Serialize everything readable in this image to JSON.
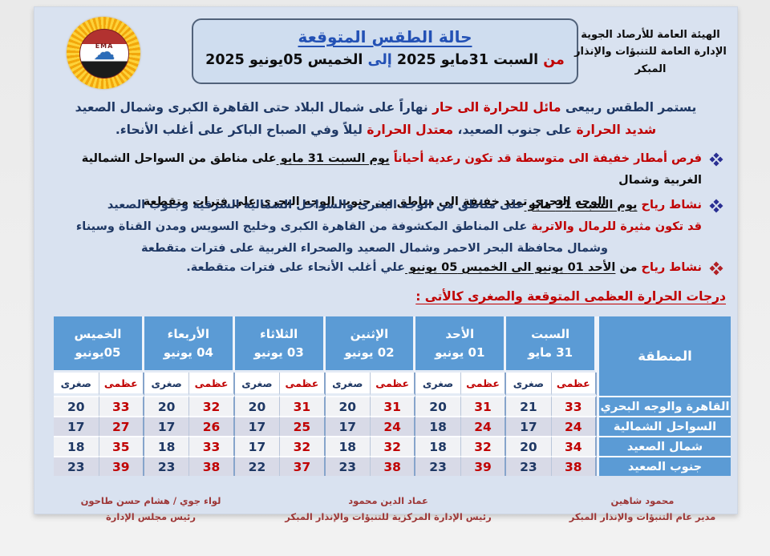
{
  "org": {
    "line1": "الهيئة العامة للأرصاد الجوية",
    "line2": "الإدارة العامة للتنبؤات والإنذار المبكر"
  },
  "logo": {
    "label": "EMA"
  },
  "title": {
    "heading": "حالة الطقس المتوقعة",
    "date_line": [
      {
        "text": "من ",
        "color": "red"
      },
      {
        "text": "السبت 31مايو 2025 ",
        "color": "black"
      },
      {
        "text": "إلى ",
        "color": "blue"
      },
      {
        "text": "الخميس 05يونيو 2025",
        "color": "black"
      }
    ]
  },
  "summary": {
    "lines": [
      {
        "align": "center",
        "segments": [
          {
            "text": "يستمر الطقس ربيعى ",
            "color": "navy"
          },
          {
            "text": "مائل للحرارة الى حار ",
            "color": "red"
          },
          {
            "text": "نهاراً على شمال البلاد حتى القاهرة الكبرى وشمال الصعيد",
            "color": "navy"
          }
        ]
      },
      {
        "align": "center",
        "segments": [
          {
            "text": "شديد الحرارة ",
            "color": "red"
          },
          {
            "text": "على جنوب الصعيد، ",
            "color": "navy"
          },
          {
            "text": "معتدل الحرارة ",
            "color": "red"
          },
          {
            "text": "ليلاً وفي الصباح الباكر على أغلب الأنحاء.",
            "color": "navy"
          }
        ]
      }
    ]
  },
  "bullets": [
    {
      "marker_color": "navy",
      "lines": [
        {
          "align": "right",
          "segments": [
            {
              "text": "فرص أمطار خفيفة الى متوسطة قد تكون رعدية أحياناً ",
              "color": "red"
            },
            {
              "text": "يوم السبت 31 مايو ",
              "color": "black",
              "underline": true
            },
            {
              "text": "على مناطق من السواحل الشمالية الغربية وشمال",
              "color": "black"
            }
          ]
        },
        {
          "align": "center",
          "segments": [
            {
              "text": "الوجه البحرى تمتد خفيفة الى مناطق من جنوب الوجه البحرى على فترات متقطعة",
              "color": "black"
            }
          ]
        }
      ]
    },
    {
      "marker_color": "navy",
      "lines": [
        {
          "align": "right",
          "segments": [
            {
              "text": "نشاط رياح ",
              "color": "red"
            },
            {
              "text": "يوم السبت 31 مايو ",
              "color": "black",
              "underline": true
            },
            {
              "text": "على مناطق من الوجه البحرى والسواحل الشمالية الشرقية وجنوب الصعيد",
              "color": "navy"
            }
          ]
        },
        {
          "align": "right",
          "segments": [
            {
              "text": "قد تكون مثيرة للرمال والاتربة ",
              "color": "red"
            },
            {
              "text": "على المناطق المكشوفة من القاهرة الكبرى وخليج السويس ومدن القناة وسيناء",
              "color": "navy"
            }
          ]
        },
        {
          "align": "center",
          "segments": [
            {
              "text": "وشمال محافظة البحر الاحمر وشمال الصعيد والصحراء الغربية على فترات متقطعة",
              "color": "navy"
            }
          ]
        }
      ]
    },
    {
      "marker_color": "red",
      "lines": [
        {
          "align": "right",
          "segments": [
            {
              "text": "نشاط رياح ",
              "color": "red"
            },
            {
              "text": "من ",
              "color": "black"
            },
            {
              "text": "الأحد 01 يونيو الى الخميس 05 يونيو ",
              "color": "black",
              "underline": true
            },
            {
              "text": "علي أغلب الأنحاء على فترات متقطعة.",
              "color": "navy"
            }
          ]
        }
      ]
    }
  ],
  "table_caption": "درجات الحرارة العظمى المتوقعة والصغرى كالأتى :",
  "forecast_table": {
    "region_header": "المنطقة",
    "max_label": "عظمى",
    "min_label": "صغرى",
    "days": [
      {
        "name": "السبت",
        "date": "31 مايو"
      },
      {
        "name": "الأحد",
        "date": "01 يونيو"
      },
      {
        "name": "الإثنين",
        "date": "02 يونيو"
      },
      {
        "name": "الثلاثاء",
        "date": "03 يونيو"
      },
      {
        "name": "الأربعاء",
        "date": "04 يونيو"
      },
      {
        "name": "الخميس",
        "date": "05يونيو"
      }
    ],
    "rows": [
      {
        "region": "القاهرة والوجه البحري",
        "values": [
          [
            33,
            21
          ],
          [
            31,
            20
          ],
          [
            31,
            20
          ],
          [
            31,
            20
          ],
          [
            32,
            20
          ],
          [
            33,
            20
          ]
        ]
      },
      {
        "region": "السواحل الشمالية",
        "values": [
          [
            24,
            17
          ],
          [
            24,
            18
          ],
          [
            24,
            17
          ],
          [
            25,
            17
          ],
          [
            26,
            17
          ],
          [
            27,
            17
          ]
        ]
      },
      {
        "region": "شمال الصعيد",
        "values": [
          [
            34,
            20
          ],
          [
            32,
            18
          ],
          [
            32,
            18
          ],
          [
            32,
            17
          ],
          [
            33,
            18
          ],
          [
            35,
            18
          ]
        ]
      },
      {
        "region": "جنوب الصعيد",
        "values": [
          [
            38,
            23
          ],
          [
            39,
            23
          ],
          [
            38,
            23
          ],
          [
            37,
            22
          ],
          [
            38,
            23
          ],
          [
            39,
            23
          ]
        ]
      }
    ]
  },
  "signatures": [
    {
      "name": "محمود شاهين",
      "title": "مدير عام التنبؤات والإنذار المبكر"
    },
    {
      "name": "عماد الدين محمود",
      "title": "رئيس الإدارة المركزية للتنبؤات والإنذار المبكر"
    },
    {
      "name": "لواء جوي / هشام حسن طاحون",
      "title": "رئيس مجلس الإدارة"
    }
  ],
  "colors": {
    "header_blue": "#5b9bd5",
    "max_red": "#c00000",
    "min_navy": "#1f3864",
    "accent_blue": "#2351b5",
    "footer_red": "#9d3636",
    "page_bg": "#d9e2f0"
  }
}
